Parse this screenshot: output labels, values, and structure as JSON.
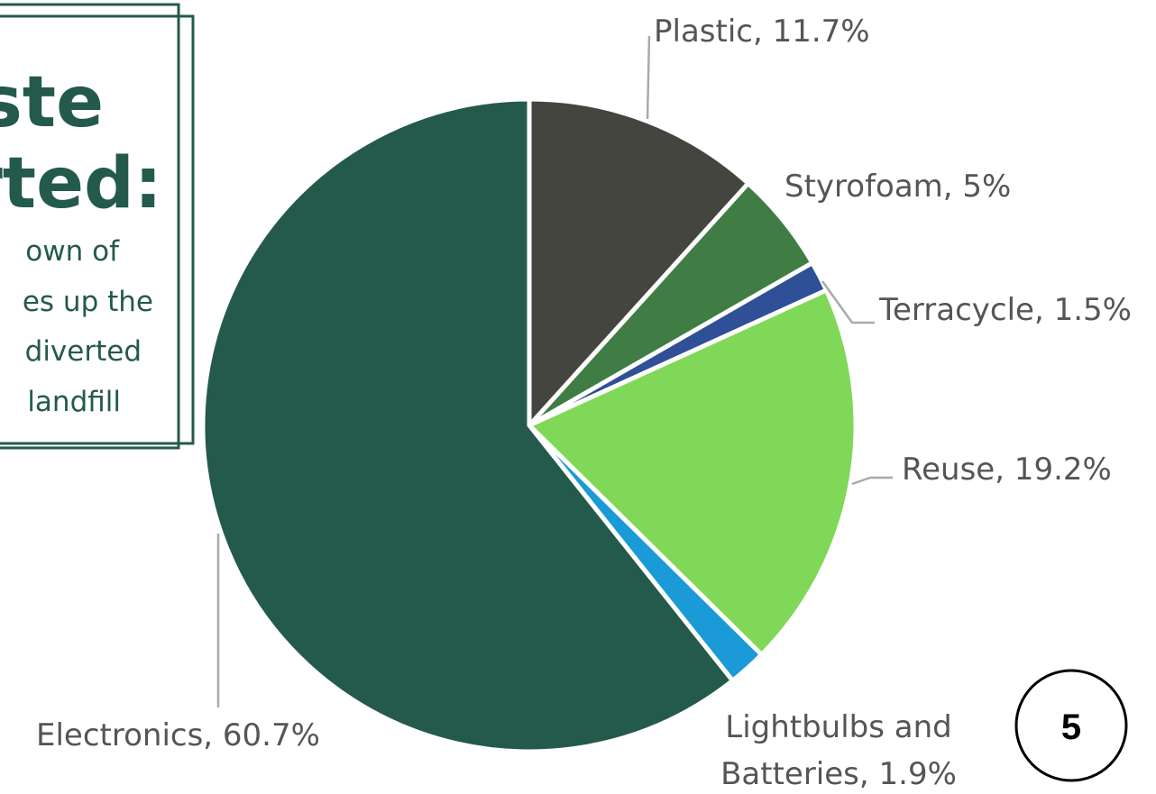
{
  "slide": {
    "heading_lines": [
      "ste",
      "rted:"
    ],
    "body_lines": [
      "own of",
      "es up the",
      "diverted",
      "landfill"
    ],
    "page_number": "5"
  },
  "chart_data": {
    "type": "pie",
    "categories": [
      "Plastic",
      "Styrofoam",
      "Terracycle",
      "Reuse",
      "Lightbulbs and Batteries",
      "Electronics"
    ],
    "values": [
      11.7,
      5,
      1.5,
      19.2,
      1.9,
      60.7
    ],
    "value_labels": [
      "Plastic, 11.7%",
      "Styrofoam, 5%",
      "Terracycle, 1.5%",
      "Reuse, 19.2%",
      "Lightbulbs and\nBatteries, 1.9%",
      "Electronics, 60.7%"
    ],
    "colors": [
      "#454540",
      "#3f7d45",
      "#2f4f97",
      "#80d858",
      "#1a9bd7",
      "#245a4c"
    ]
  }
}
